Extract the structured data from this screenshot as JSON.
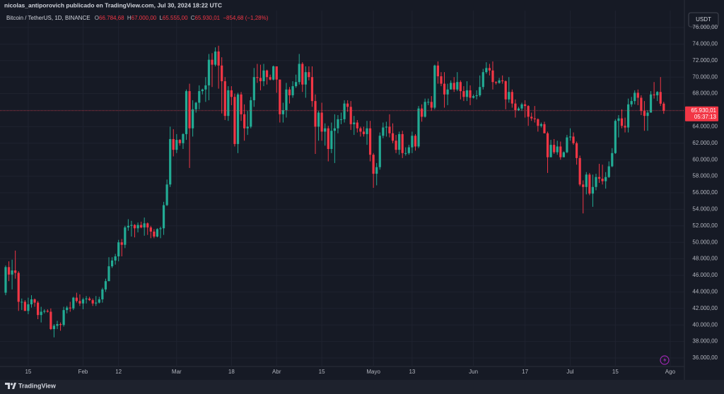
{
  "header": "nicolas_antiporovich publicado en TradingView.com, Jul 30, 2024 18:22 UTC",
  "footer": "TradingView",
  "currency_button": "USDT",
  "chart_data": {
    "type": "candlestick",
    "legend": {
      "symbol": "Bitcoin / TetherUS, 1D, BINANCE",
      "o": "O",
      "o_value": "66.784,68",
      "h": "H",
      "h_value": "67.000,00",
      "l": "L",
      "l_value": "65.555,00",
      "c": "C",
      "c_value": "65.930,01",
      "change": "−854,68 (−1,28%)"
    },
    "up_color": "#22ab94",
    "down_color": "#f23645",
    "grid": true,
    "last_price": {
      "value": 65930.01,
      "label": "65.930,01"
    },
    "countdown": "05:37:13",
    "xlim": [
      -1.75,
      210.4
    ],
    "ylim": [
      35060,
      78050
    ],
    "xticks": [
      {
        "value": 7,
        "label": "15"
      },
      {
        "value": 24,
        "label": "Feb"
      },
      {
        "value": 35,
        "label": "12"
      },
      {
        "value": 53,
        "label": "Mar"
      },
      {
        "value": 70,
        "label": "18"
      },
      {
        "value": 84,
        "label": "Abr"
      },
      {
        "value": 98,
        "label": "15"
      },
      {
        "value": 114,
        "label": "Mayo"
      },
      {
        "value": 126,
        "label": "13"
      },
      {
        "value": 145,
        "label": "Jun"
      },
      {
        "value": 161,
        "label": "17"
      },
      {
        "value": 175,
        "label": "Jul"
      },
      {
        "value": 189,
        "label": "15"
      },
      {
        "value": 206,
        "label": "Ago"
      }
    ],
    "yticks": [
      {
        "value": 36000,
        "label": "36.000,00"
      },
      {
        "value": 38000,
        "label": "38.000,00"
      },
      {
        "value": 40000,
        "label": "40.000,00"
      },
      {
        "value": 42000,
        "label": "42.000,00"
      },
      {
        "value": 44000,
        "label": "44.000,00"
      },
      {
        "value": 46000,
        "label": "46.000,00"
      },
      {
        "value": 48000,
        "label": "48.000,00"
      },
      {
        "value": 50000,
        "label": "50.000,00"
      },
      {
        "value": 52000,
        "label": "52.000,00"
      },
      {
        "value": 54000,
        "label": "54.000,00"
      },
      {
        "value": 56000,
        "label": "56.000,00"
      },
      {
        "value": 58000,
        "label": "58.000,00"
      },
      {
        "value": 60000,
        "label": "60.000,00"
      },
      {
        "value": 62000,
        "label": "62.000,00"
      },
      {
        "value": 64000,
        "label": "64.000,00"
      },
      {
        "value": 66000,
        "label": "66.000,00"
      },
      {
        "value": 68000,
        "label": "68.000,00"
      },
      {
        "value": 70000,
        "label": "70.000,00"
      },
      {
        "value": 72000,
        "label": "72.000,00"
      },
      {
        "value": 74000,
        "label": "74.000,00"
      },
      {
        "value": 76000,
        "label": "76.000,00"
      }
    ],
    "ohlc": [
      [
        43900,
        47200,
        43600,
        47000
      ],
      [
        47000,
        47700,
        45300,
        46100
      ],
      [
        46100,
        47900,
        44300,
        46600
      ],
      [
        46600,
        49000,
        45600,
        46300
      ],
      [
        46300,
        46500,
        41700,
        42800
      ],
      [
        42800,
        43200,
        41800,
        42800
      ],
      [
        42800,
        43000,
        41700,
        41700
      ],
      [
        41700,
        43300,
        41300,
        42500
      ],
      [
        42500,
        43600,
        42100,
        43100
      ],
      [
        43100,
        43200,
        42200,
        42700
      ],
      [
        42700,
        42900,
        40700,
        41200
      ],
      [
        41200,
        42200,
        40300,
        41600
      ],
      [
        41600,
        41900,
        41400,
        41700
      ],
      [
        41700,
        41900,
        41500,
        41600
      ],
      [
        41600,
        42000,
        39400,
        39500
      ],
      [
        39500,
        40100,
        38500,
        39900
      ],
      [
        39900,
        40500,
        39500,
        40100
      ],
      [
        40100,
        40300,
        39300,
        40000
      ],
      [
        40000,
        42200,
        39800,
        41800
      ],
      [
        41800,
        42300,
        41400,
        42100
      ],
      [
        42100,
        42800,
        41600,
        42000
      ],
      [
        42000,
        43400,
        41800,
        43300
      ],
      [
        43300,
        43900,
        42700,
        42900
      ],
      [
        42900,
        43700,
        42300,
        42600
      ],
      [
        42600,
        43300,
        41900,
        43100
      ],
      [
        43100,
        43500,
        42600,
        43200
      ],
      [
        43200,
        43400,
        42900,
        43000
      ],
      [
        43000,
        43200,
        42300,
        42600
      ],
      [
        42600,
        43500,
        42300,
        42700
      ],
      [
        42700,
        43400,
        42600,
        43100
      ],
      [
        43100,
        44500,
        42700,
        44300
      ],
      [
        44300,
        45600,
        44000,
        45300
      ],
      [
        45300,
        48200,
        45300,
        47100
      ],
      [
        47100,
        48200,
        46900,
        47800
      ],
      [
        47800,
        48600,
        47300,
        48300
      ],
      [
        48300,
        50300,
        47700,
        50000
      ],
      [
        50000,
        50400,
        48300,
        49700
      ],
      [
        49700,
        52000,
        49300,
        51800
      ],
      [
        51800,
        52800,
        51400,
        52000
      ],
      [
        52000,
        52600,
        50700,
        52100
      ],
      [
        52100,
        52200,
        50600,
        51700
      ],
      [
        51700,
        52400,
        51200,
        52100
      ],
      [
        52100,
        52500,
        51700,
        51800
      ],
      [
        51800,
        53000,
        50800,
        52300
      ],
      [
        52300,
        52400,
        50900,
        51800
      ],
      [
        51800,
        52000,
        50500,
        51300
      ],
      [
        51300,
        51600,
        50500,
        50700
      ],
      [
        50700,
        51700,
        50600,
        51600
      ],
      [
        51600,
        51900,
        50500,
        51700
      ],
      [
        51700,
        54900,
        50900,
        54500
      ],
      [
        54500,
        57600,
        54400,
        57000
      ],
      [
        57000,
        64000,
        56700,
        62500
      ],
      [
        62500,
        63700,
        60400,
        61200
      ],
      [
        61200,
        63100,
        60800,
        62400
      ],
      [
        62400,
        62500,
        61700,
        62000
      ],
      [
        62000,
        63200,
        61300,
        63100
      ],
      [
        63100,
        68500,
        62400,
        68300
      ],
      [
        68300,
        69200,
        59000,
        63800
      ],
      [
        63800,
        67200,
        62800,
        66100
      ],
      [
        66100,
        67000,
        65700,
        66900
      ],
      [
        66900,
        69000,
        66100,
        68300
      ],
      [
        68300,
        68600,
        67900,
        68500
      ],
      [
        68500,
        70000,
        67000,
        69000
      ],
      [
        69000,
        72800,
        67200,
        72100
      ],
      [
        72100,
        72900,
        68800,
        71500
      ],
      [
        71500,
        73600,
        71300,
        73100
      ],
      [
        73100,
        73800,
        68600,
        71400
      ],
      [
        71400,
        72400,
        65600,
        69500
      ],
      [
        69500,
        70000,
        64800,
        65300
      ],
      [
        65300,
        68900,
        64700,
        68400
      ],
      [
        68400,
        68900,
        66600,
        67600
      ],
      [
        67600,
        68000,
        61600,
        61900
      ],
      [
        61900,
        68100,
        60800,
        67900
      ],
      [
        67900,
        68200,
        64700,
        65500
      ],
      [
        65500,
        66700,
        62300,
        63800
      ],
      [
        63800,
        65900,
        63000,
        64000
      ],
      [
        64000,
        67600,
        63800,
        67200
      ],
      [
        67200,
        71100,
        66400,
        70000
      ],
      [
        70000,
        71600,
        69300,
        69900
      ],
      [
        69900,
        71500,
        68400,
        69500
      ],
      [
        69500,
        71600,
        68900,
        70800
      ],
      [
        70800,
        70900,
        69100,
        70000
      ],
      [
        70000,
        70300,
        69600,
        69700
      ],
      [
        69700,
        71400,
        69600,
        71300
      ],
      [
        71300,
        71300,
        68100,
        69700
      ],
      [
        69700,
        69700,
        64500,
        65500
      ],
      [
        65500,
        66900,
        64500,
        66000
      ],
      [
        66000,
        69300,
        65100,
        68500
      ],
      [
        68500,
        68800,
        66800,
        67800
      ],
      [
        67800,
        69500,
        67500,
        68900
      ],
      [
        68900,
        70300,
        68700,
        69400
      ],
      [
        69400,
        72800,
        69100,
        71600
      ],
      [
        71600,
        71800,
        68200,
        69100
      ],
      [
        69100,
        71300,
        67500,
        70600
      ],
      [
        70600,
        71300,
        69600,
        70000
      ],
      [
        70000,
        71300,
        66400,
        67100
      ],
      [
        67100,
        67900,
        60700,
        64000
      ],
      [
        64000,
        65900,
        62300,
        65700
      ],
      [
        65700,
        66900,
        62300,
        63400
      ],
      [
        63400,
        64400,
        61700,
        63800
      ],
      [
        63800,
        64100,
        59800,
        61300
      ],
      [
        61300,
        64500,
        60800,
        63500
      ],
      [
        63500,
        65500,
        59600,
        63800
      ],
      [
        63800,
        65400,
        63200,
        64900
      ],
      [
        64900,
        65700,
        64300,
        64900
      ],
      [
        64900,
        67200,
        64500,
        66800
      ],
      [
        66800,
        67200,
        65800,
        66400
      ],
      [
        66400,
        67100,
        63600,
        64300
      ],
      [
        64300,
        65300,
        63000,
        64500
      ],
      [
        64500,
        64800,
        63300,
        63800
      ],
      [
        63800,
        64000,
        62800,
        63400
      ],
      [
        63400,
        64000,
        62800,
        63100
      ],
      [
        63100,
        64700,
        61800,
        63800
      ],
      [
        63800,
        64700,
        59800,
        60600
      ],
      [
        60600,
        60800,
        56600,
        58300
      ],
      [
        58300,
        59600,
        56900,
        59100
      ],
      [
        59100,
        63300,
        58800,
        62900
      ],
      [
        62900,
        64500,
        62600,
        63900
      ],
      [
        63900,
        64600,
        62800,
        64000
      ],
      [
        64000,
        65500,
        62700,
        63200
      ],
      [
        63200,
        64400,
        62000,
        62300
      ],
      [
        62300,
        63000,
        60800,
        61200
      ],
      [
        61200,
        63400,
        60600,
        63100
      ],
      [
        63100,
        63500,
        60200,
        60800
      ],
      [
        60800,
        61500,
        60500,
        60800
      ],
      [
        60800,
        61800,
        60600,
        61500
      ],
      [
        61500,
        63400,
        60800,
        62900
      ],
      [
        62900,
        63100,
        61100,
        61600
      ],
      [
        61600,
        66500,
        61400,
        66200
      ],
      [
        66200,
        66700,
        64600,
        65200
      ],
      [
        65200,
        67400,
        65100,
        67000
      ],
      [
        67000,
        67400,
        66600,
        67000
      ],
      [
        67000,
        67700,
        65900,
        66300
      ],
      [
        66300,
        71500,
        66100,
        71400
      ],
      [
        71400,
        71900,
        69200,
        70100
      ],
      [
        70100,
        70600,
        68900,
        69200
      ],
      [
        69200,
        70600,
        66300,
        67900
      ],
      [
        67900,
        69200,
        66600,
        68500
      ],
      [
        68500,
        69600,
        68500,
        69300
      ],
      [
        69300,
        70000,
        68200,
        68500
      ],
      [
        68500,
        70600,
        68300,
        69400
      ],
      [
        69400,
        69600,
        67300,
        68300
      ],
      [
        68300,
        68900,
        67100,
        67600
      ],
      [
        67600,
        69500,
        67100,
        68400
      ],
      [
        68400,
        69000,
        66600,
        67500
      ],
      [
        67500,
        67900,
        67400,
        67700
      ],
      [
        67700,
        68400,
        67300,
        67800
      ],
      [
        67800,
        70200,
        67600,
        68800
      ],
      [
        68800,
        71000,
        68500,
        70600
      ],
      [
        70600,
        71800,
        70400,
        71100
      ],
      [
        71100,
        71600,
        70200,
        70800
      ],
      [
        70800,
        71900,
        68500,
        69400
      ],
      [
        69400,
        69500,
        69100,
        69300
      ],
      [
        69300,
        69900,
        69200,
        69600
      ],
      [
        69600,
        70200,
        69200,
        69500
      ],
      [
        69500,
        69600,
        66100,
        67300
      ],
      [
        67300,
        70000,
        66900,
        68200
      ],
      [
        68200,
        68500,
        66300,
        66800
      ],
      [
        66800,
        67300,
        65100,
        66000
      ],
      [
        66000,
        66400,
        65900,
        66200
      ],
      [
        66200,
        66900,
        65900,
        66700
      ],
      [
        66700,
        67200,
        65100,
        66500
      ],
      [
        66500,
        66600,
        64100,
        65200
      ],
      [
        65200,
        65700,
        64700,
        65000
      ],
      [
        65000,
        66500,
        64500,
        64900
      ],
      [
        64900,
        65000,
        63400,
        64100
      ],
      [
        64100,
        64500,
        63900,
        64300
      ],
      [
        64300,
        64600,
        63200,
        63200
      ],
      [
        63200,
        63400,
        58400,
        60300
      ],
      [
        60300,
        62400,
        60300,
        61800
      ],
      [
        61800,
        62500,
        60700,
        60900
      ],
      [
        60900,
        62300,
        60600,
        61600
      ],
      [
        61600,
        62200,
        60000,
        60300
      ],
      [
        60300,
        61000,
        60300,
        60900
      ],
      [
        60900,
        63000,
        60800,
        62700
      ],
      [
        62700,
        63800,
        62300,
        62800
      ],
      [
        62800,
        63300,
        61800,
        62000
      ],
      [
        62000,
        62200,
        59400,
        60200
      ],
      [
        60200,
        60500,
        56800,
        57000
      ],
      [
        57000,
        57500,
        53500,
        56700
      ],
      [
        56700,
        58500,
        55800,
        58200
      ],
      [
        58200,
        58400,
        55700,
        55900
      ],
      [
        55900,
        58200,
        54300,
        56700
      ],
      [
        56700,
        58300,
        56300,
        57900
      ],
      [
        57900,
        59500,
        57200,
        57700
      ],
      [
        57700,
        59400,
        57000,
        57400
      ],
      [
        57400,
        58500,
        56500,
        57900
      ],
      [
        57900,
        59800,
        57800,
        59200
      ],
      [
        59200,
        61400,
        59100,
        60800
      ],
      [
        60800,
        64900,
        60700,
        64700
      ],
      [
        64700,
        65400,
        62700,
        65000
      ],
      [
        65000,
        66100,
        63800,
        64100
      ],
      [
        64100,
        65100,
        63300,
        63900
      ],
      [
        63900,
        67400,
        63300,
        66700
      ],
      [
        66700,
        67600,
        66400,
        67100
      ],
      [
        67100,
        68400,
        66700,
        68100
      ],
      [
        68100,
        68500,
        66600,
        67500
      ],
      [
        67500,
        67800,
        65400,
        65900
      ],
      [
        65900,
        67100,
        63500,
        65300
      ],
      [
        65300,
        66000,
        63500,
        65700
      ],
      [
        65700,
        68300,
        65700,
        67900
      ],
      [
        67900,
        69400,
        67400,
        67800
      ],
      [
        67800,
        68300,
        67100,
        68200
      ],
      [
        68200,
        70000,
        66500,
        66784.68
      ],
      [
        66784.68,
        67000,
        65555,
        65930.01
      ]
    ]
  }
}
